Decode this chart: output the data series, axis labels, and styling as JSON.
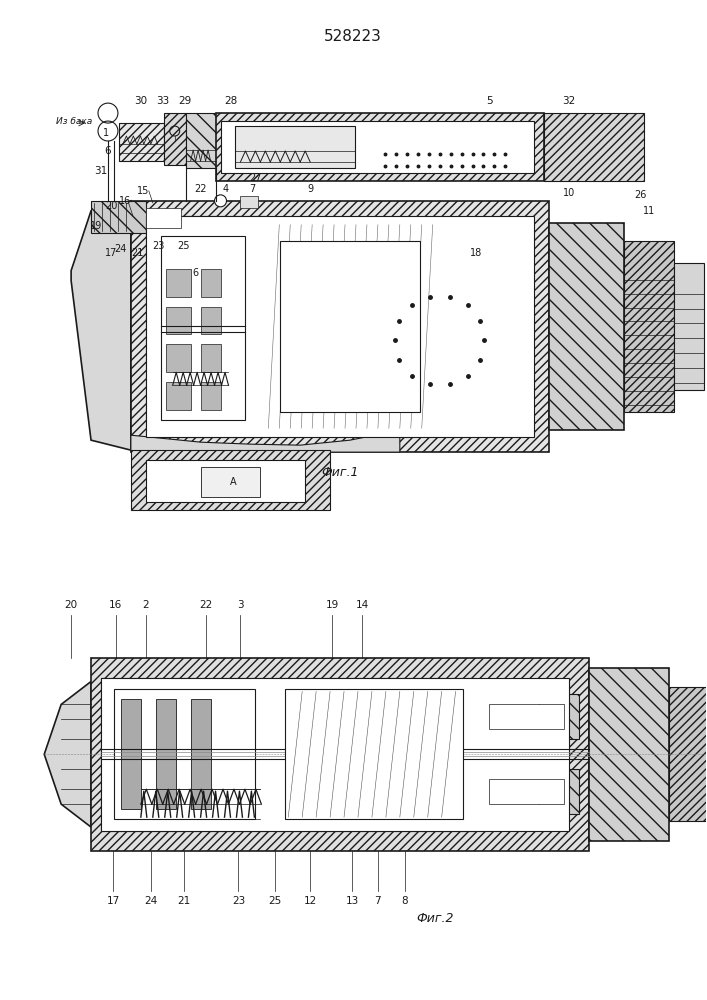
{
  "title": "528223",
  "background_color": "#ffffff",
  "line_color": "#1a1a1a",
  "fig1_caption": "Фиг.1",
  "fig2_caption": "Фиг.2"
}
